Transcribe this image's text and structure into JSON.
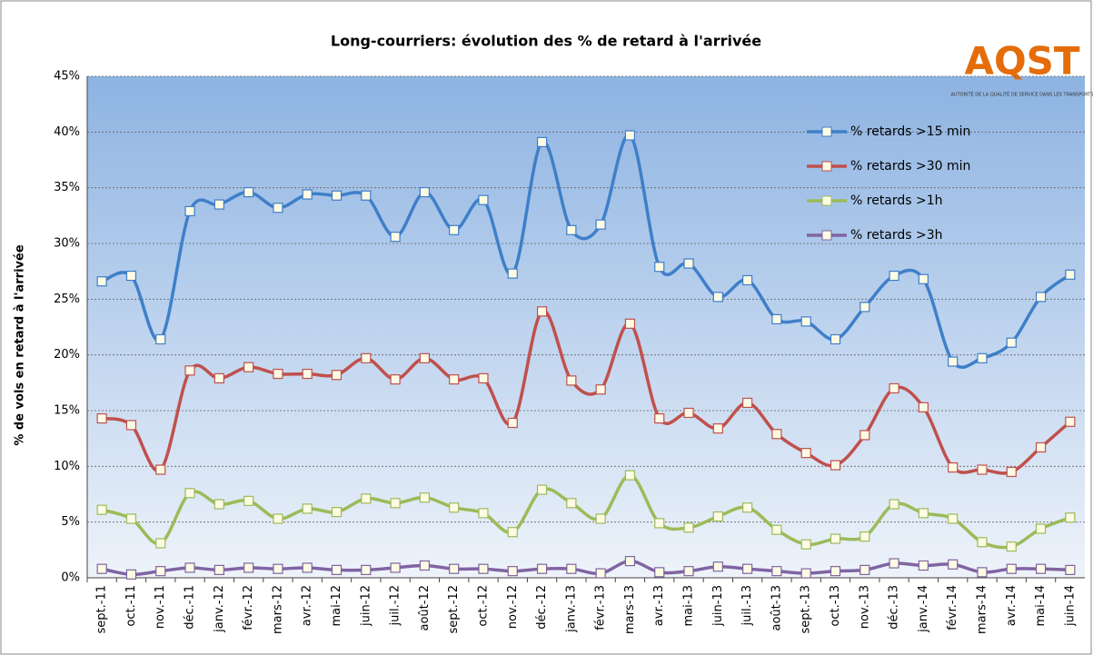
{
  "chart_data": {
    "type": "line",
    "title": "Long-courriers: évolution des % de retard à l'arrivée",
    "y_label": "% de vols en retard à l'arrivée",
    "logo": {
      "text": "AQST",
      "caption": "AUTORITÉ DE LA QUALITÉ DE SERVICE DANS LES TRANSPORTS"
    },
    "categories": [
      "sept.-11",
      "oct.-11",
      "nov.-11",
      "déc.-11",
      "janv.-12",
      "févr.-12",
      "mars-12",
      "avr.-12",
      "mai-12",
      "juin-12",
      "juil.-12",
      "août-12",
      "sept.-12",
      "oct.-12",
      "nov.-12",
      "déc.-12",
      "janv.-13",
      "févr.-13",
      "mars-13",
      "avr.-13",
      "mai-13",
      "juin-13",
      "juil.-13",
      "août-13",
      "sept.-13",
      "oct.-13",
      "nov.-13",
      "déc.-13",
      "janv.-14",
      "févr.-14",
      "mars-14",
      "avr.-14",
      "mai-14",
      "juin-14"
    ],
    "series": [
      {
        "name": "% retards >15 min",
        "color": "#3f7fc8",
        "values": [
          26.6,
          27.1,
          21.4,
          32.9,
          33.5,
          34.6,
          33.2,
          34.4,
          34.3,
          34.3,
          30.6,
          34.6,
          31.2,
          33.9,
          27.3,
          39.1,
          31.2,
          31.7,
          39.7,
          27.9,
          28.2,
          25.2,
          26.7,
          23.2,
          23.0,
          21.4,
          24.3,
          27.1,
          26.8,
          19.4,
          19.7,
          21.1,
          25.2,
          27.2
        ]
      },
      {
        "name": "% retards >30 min",
        "color": "#c0504d",
        "values": [
          14.3,
          13.7,
          9.7,
          18.6,
          17.9,
          18.9,
          18.3,
          18.3,
          18.2,
          19.7,
          17.8,
          19.7,
          17.8,
          17.9,
          13.9,
          23.9,
          17.7,
          16.9,
          22.8,
          14.3,
          14.8,
          13.4,
          15.7,
          12.9,
          11.2,
          10.1,
          12.8,
          17.0,
          15.3,
          9.9,
          9.7,
          9.5,
          11.7,
          14.0
        ]
      },
      {
        "name": "% retards >1h",
        "color": "#9bbb59",
        "values": [
          6.1,
          5.3,
          3.1,
          7.6,
          6.6,
          6.9,
          5.3,
          6.2,
          5.9,
          7.1,
          6.7,
          7.2,
          6.3,
          5.8,
          4.1,
          7.9,
          6.7,
          5.3,
          9.2,
          4.9,
          4.5,
          5.5,
          6.3,
          4.3,
          3.0,
          3.5,
          3.7,
          6.6,
          5.8,
          5.3,
          3.2,
          2.8,
          4.4,
          5.4
        ]
      },
      {
        "name": "% retards >3h",
        "color": "#8064a2",
        "values": [
          0.8,
          0.3,
          0.6,
          0.9,
          0.7,
          0.9,
          0.8,
          0.9,
          0.7,
          0.7,
          0.9,
          1.1,
          0.8,
          0.8,
          0.6,
          0.8,
          0.8,
          0.4,
          1.5,
          0.5,
          0.6,
          1.0,
          0.8,
          0.6,
          0.4,
          0.6,
          0.7,
          1.3,
          1.1,
          1.2,
          0.5,
          0.8,
          0.8,
          0.7
        ]
      }
    ],
    "ylim": [
      0,
      45
    ],
    "yticks": [
      {
        "value": 0,
        "label": "0%"
      },
      {
        "value": 5,
        "label": "5%"
      },
      {
        "value": 10,
        "label": "10%"
      },
      {
        "value": 15,
        "label": "15%"
      },
      {
        "value": 20,
        "label": "20%"
      },
      {
        "value": 25,
        "label": "25%"
      },
      {
        "value": 30,
        "label": "30%"
      },
      {
        "value": 35,
        "label": "35%"
      },
      {
        "value": 40,
        "label": "40%"
      },
      {
        "value": 45,
        "label": "45%"
      }
    ],
    "grid": true,
    "legend": "upper right"
  }
}
